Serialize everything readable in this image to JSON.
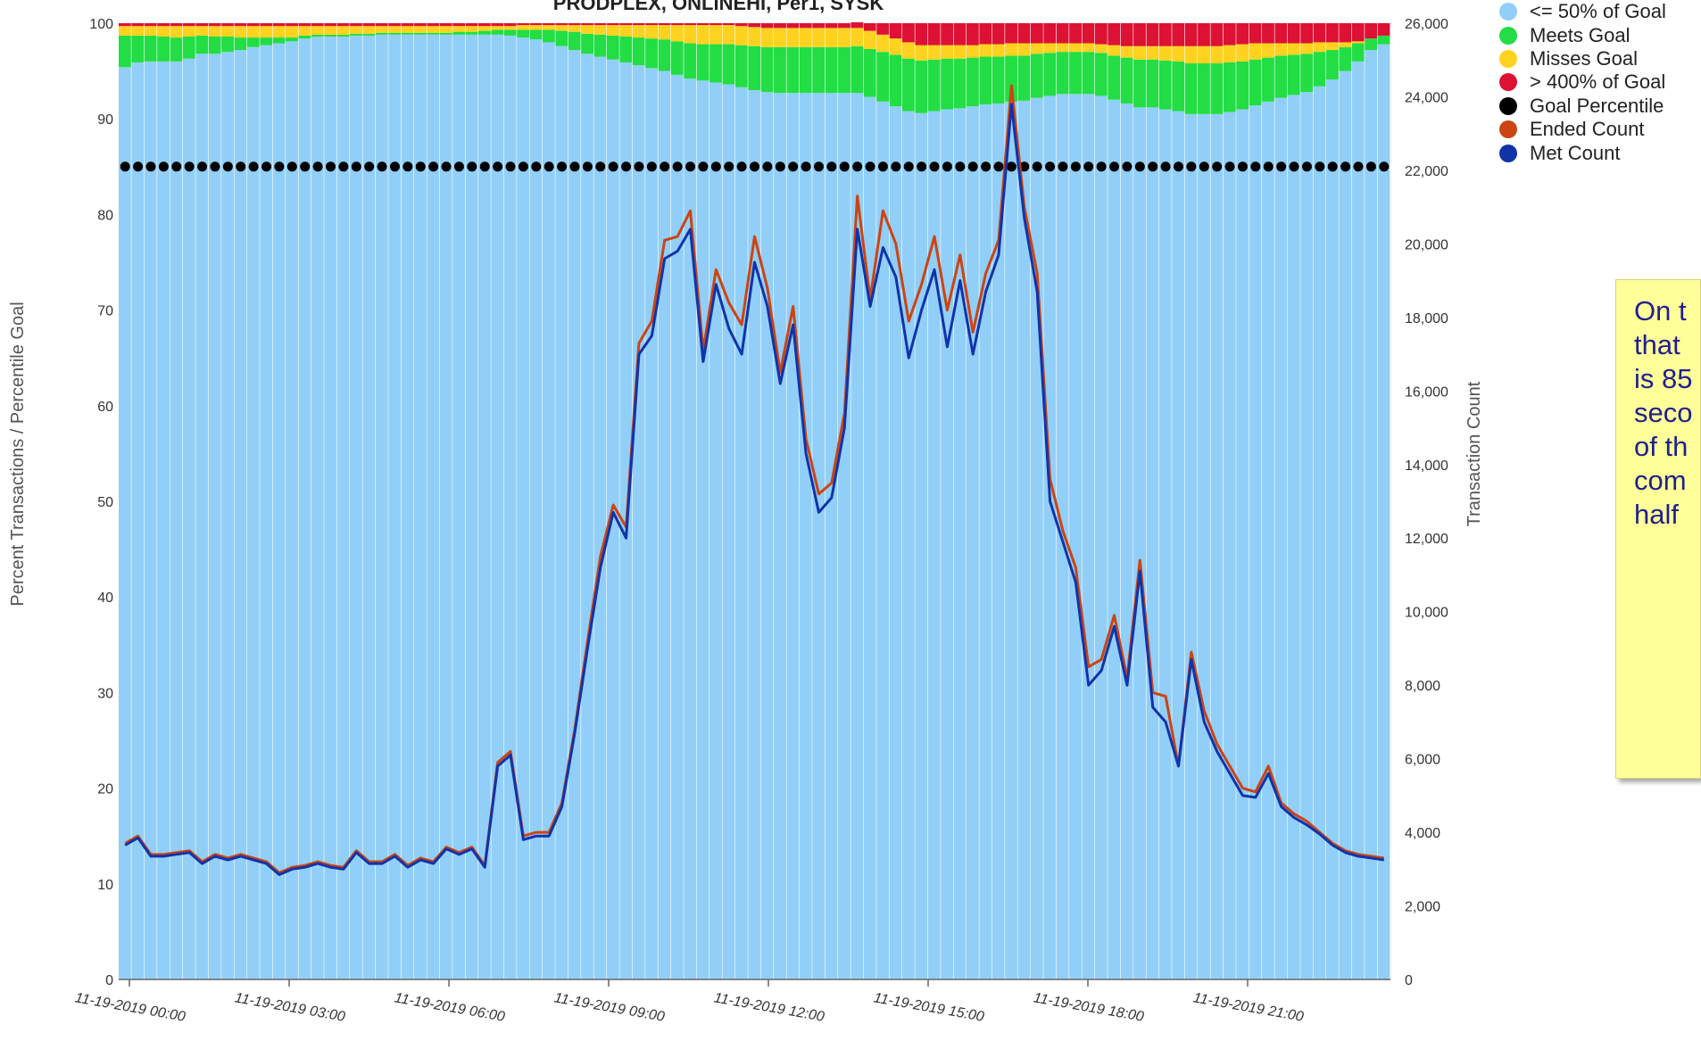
{
  "chart_data": {
    "type": "bar",
    "title": "PRODPLEX, ONLINEHI, Per1, SYSK",
    "ylabel_left": "Percent Transactions / Percentile Goal",
    "ylabel_right": "Transaction Count",
    "ylim_left": [
      0,
      100
    ],
    "ylim_right": [
      0,
      26000
    ],
    "yticks_left": [
      "0",
      "10",
      "20",
      "30",
      "40",
      "50",
      "60",
      "70",
      "80",
      "90",
      "100"
    ],
    "yticks_right": [
      "0",
      "2,000",
      "4,000",
      "6,000",
      "8,000",
      "10,000",
      "12,000",
      "14,000",
      "16,000",
      "18,000",
      "20,000",
      "22,000",
      "24,000",
      "26,000"
    ],
    "xticks": [
      "11-19-2019 00:00",
      "11-19-2019 03:00",
      "11-19-2019 06:00",
      "11-19-2019 09:00",
      "11-19-2019 12:00",
      "11-19-2019 15:00",
      "11-19-2019 18:00",
      "11-19-2019 21:00"
    ],
    "legend": [
      {
        "name": "<= 50% of Goal",
        "color": "#91cff8"
      },
      {
        "name": "Meets Goal",
        "color": "#22dd44"
      },
      {
        "name": "Misses Goal",
        "color": "#ffd21f"
      },
      {
        "name": "> 400% of Goal",
        "color": "#dd1133"
      },
      {
        "name": "Goal Percentile",
        "color": "#000000"
      },
      {
        "name": "Ended Count",
        "color": "#cc4411"
      },
      {
        "name": "Met Count",
        "color": "#1133aa"
      }
    ],
    "goal_percentile": 85,
    "stack_le50_percent": [
      95.4,
      95.9,
      96.0,
      96.0,
      96.0,
      96.3,
      96.8,
      96.8,
      97.0,
      97.2,
      97.5,
      97.7,
      97.9,
      98.1,
      98.4,
      98.6,
      98.6,
      98.6,
      98.7,
      98.7,
      98.8,
      98.8,
      98.8,
      98.8,
      98.8,
      98.8,
      98.8,
      98.8,
      98.8,
      98.8,
      98.7,
      98.5,
      98.3,
      98.0,
      97.6,
      97.2,
      96.8,
      96.5,
      96.2,
      95.9,
      95.6,
      95.3,
      95.0,
      94.6,
      94.2,
      94.0,
      93.8,
      93.6,
      93.3,
      93.0,
      92.8,
      92.7,
      92.7,
      92.7,
      92.7,
      92.7,
      92.7,
      92.7,
      92.3,
      91.8,
      91.3,
      90.8,
      90.6,
      90.8,
      91.0,
      91.1,
      91.3,
      91.5,
      91.6,
      91.8,
      91.9,
      92.2,
      92.4,
      92.6,
      92.6,
      92.6,
      92.4,
      92.0,
      91.6,
      91.2,
      91.2,
      91.0,
      90.8,
      90.5,
      90.5,
      90.5,
      90.7,
      91.0,
      91.4,
      91.8,
      92.2,
      92.5,
      92.8,
      93.4,
      94.1,
      95.0,
      96.0,
      97.2,
      97.8
    ],
    "stack_meets_percent": [
      3.3,
      2.8,
      2.7,
      2.6,
      2.5,
      2.3,
      1.9,
      1.8,
      1.6,
      1.3,
      1.0,
      0.8,
      0.6,
      0.4,
      0.3,
      0.2,
      0.2,
      0.2,
      0.2,
      0.2,
      0.2,
      0.2,
      0.2,
      0.2,
      0.2,
      0.2,
      0.3,
      0.3,
      0.4,
      0.5,
      0.6,
      0.8,
      1.0,
      1.3,
      1.6,
      1.9,
      2.1,
      2.3,
      2.5,
      2.7,
      2.9,
      3.1,
      3.3,
      3.5,
      3.7,
      3.8,
      4.0,
      4.2,
      4.4,
      4.6,
      4.7,
      4.8,
      4.8,
      4.8,
      4.8,
      4.8,
      4.8,
      4.9,
      5.0,
      5.2,
      5.4,
      5.5,
      5.5,
      5.4,
      5.3,
      5.2,
      5.1,
      5.0,
      4.9,
      4.8,
      4.7,
      4.6,
      4.5,
      4.4,
      4.4,
      4.4,
      4.5,
      4.6,
      4.8,
      5.0,
      5.0,
      5.1,
      5.2,
      5.3,
      5.3,
      5.3,
      5.2,
      5.0,
      4.8,
      4.6,
      4.4,
      4.2,
      4.0,
      3.6,
      3.1,
      2.5,
      1.9,
      1.2,
      0.9
    ],
    "stack_misses_percent": [
      1.0,
      1.0,
      1.0,
      1.1,
      1.2,
      1.1,
      1.0,
      1.1,
      1.1,
      1.2,
      1.2,
      1.2,
      1.2,
      1.2,
      1.0,
      0.9,
      0.9,
      0.9,
      0.8,
      0.8,
      0.7,
      0.7,
      0.7,
      0.7,
      0.7,
      0.7,
      0.6,
      0.6,
      0.5,
      0.4,
      0.4,
      0.5,
      0.5,
      0.5,
      0.6,
      0.7,
      0.9,
      1.0,
      1.1,
      1.2,
      1.3,
      1.4,
      1.5,
      1.7,
      1.9,
      2.0,
      2.0,
      2.0,
      2.0,
      2.0,
      2.0,
      2.0,
      2.0,
      2.0,
      2.0,
      2.0,
      2.0,
      1.9,
      1.9,
      1.8,
      1.7,
      1.7,
      1.6,
      1.5,
      1.4,
      1.4,
      1.3,
      1.3,
      1.3,
      1.3,
      1.3,
      1.1,
      1.0,
      0.9,
      0.9,
      0.9,
      0.9,
      1.1,
      1.2,
      1.4,
      1.4,
      1.5,
      1.6,
      1.8,
      1.8,
      1.8,
      1.8,
      1.8,
      1.7,
      1.5,
      1.3,
      1.2,
      1.1,
      1.0,
      0.8,
      0.5,
      0.2,
      0.0,
      0.0
    ],
    "stack_over400_percent": [
      0.3,
      0.3,
      0.3,
      0.3,
      0.3,
      0.3,
      0.3,
      0.3,
      0.3,
      0.3,
      0.3,
      0.3,
      0.3,
      0.3,
      0.3,
      0.3,
      0.3,
      0.3,
      0.3,
      0.3,
      0.3,
      0.3,
      0.3,
      0.3,
      0.3,
      0.3,
      0.3,
      0.3,
      0.3,
      0.3,
      0.3,
      0.2,
      0.2,
      0.2,
      0.2,
      0.2,
      0.2,
      0.2,
      0.2,
      0.2,
      0.2,
      0.2,
      0.2,
      0.2,
      0.2,
      0.2,
      0.2,
      0.2,
      0.3,
      0.4,
      0.5,
      0.5,
      0.5,
      0.5,
      0.5,
      0.5,
      0.5,
      0.6,
      0.8,
      1.2,
      1.6,
      2.0,
      2.3,
      2.3,
      2.3,
      2.3,
      2.3,
      2.2,
      2.2,
      2.1,
      2.1,
      2.1,
      2.1,
      2.1,
      2.1,
      2.1,
      2.2,
      2.3,
      2.4,
      2.4,
      2.4,
      2.4,
      2.4,
      2.4,
      2.4,
      2.4,
      2.3,
      2.2,
      2.1,
      2.1,
      2.1,
      2.1,
      2.1,
      2.0,
      2.0,
      2.0,
      1.9,
      1.6,
      1.3
    ],
    "ended_count": [
      3700,
      3900,
      3400,
      3400,
      3450,
      3500,
      3200,
      3400,
      3300,
      3400,
      3300,
      3200,
      2900,
      3050,
      3100,
      3200,
      3100,
      3050,
      3500,
      3200,
      3200,
      3400,
      3100,
      3300,
      3200,
      3600,
      3450,
      3600,
      3100,
      5900,
      6200,
      3900,
      4000,
      4000,
      4800,
      6800,
      9200,
      11500,
      12900,
      12300,
      17300,
      17900,
      20100,
      20200,
      20900,
      17100,
      19300,
      18400,
      17800,
      20200,
      18800,
      16500,
      18300,
      14700,
      13200,
      13500,
      15400,
      21300,
      18500,
      20900,
      20000,
      17900,
      18900,
      20200,
      18200,
      19700,
      17600,
      19200,
      20100,
      24300,
      21000,
      19200,
      13600,
      12200,
      11200,
      8500,
      8700,
      9900,
      8200,
      11400,
      7800,
      7700,
      5800,
      8900,
      7300,
      6400,
      5800,
      5200,
      5100,
      5800,
      4800,
      4500,
      4300,
      4000,
      3700,
      3500,
      3400,
      3350,
      3300
    ],
    "met_count": [
      3650,
      3850,
      3350,
      3350,
      3400,
      3450,
      3150,
      3350,
      3250,
      3350,
      3250,
      3150,
      2850,
      3000,
      3050,
      3150,
      3050,
      3000,
      3450,
      3150,
      3150,
      3350,
      3050,
      3250,
      3150,
      3550,
      3400,
      3550,
      3050,
      5800,
      6100,
      3800,
      3900,
      3900,
      4700,
      6700,
      9000,
      11200,
      12700,
      12000,
      17000,
      17500,
      19600,
      19800,
      20400,
      16800,
      18900,
      17700,
      17000,
      19500,
      18300,
      16200,
      17800,
      14300,
      12700,
      13100,
      15000,
      20400,
      18300,
      19900,
      19100,
      16900,
      18200,
      19300,
      17200,
      19000,
      17000,
      18700,
      19700,
      23800,
      20700,
      18700,
      13000,
      11900,
      10800,
      8000,
      8400,
      9600,
      8000,
      11100,
      7400,
      7000,
      5800,
      8700,
      7000,
      6200,
      5600,
      5000,
      4950,
      5600,
      4700,
      4400,
      4200,
      3950,
      3650,
      3450,
      3350,
      3300,
      3250
    ]
  },
  "annotation": {
    "lines": [
      "On t",
      "that",
      "is 85",
      "seco",
      "of th",
      "com",
      "half"
    ]
  }
}
